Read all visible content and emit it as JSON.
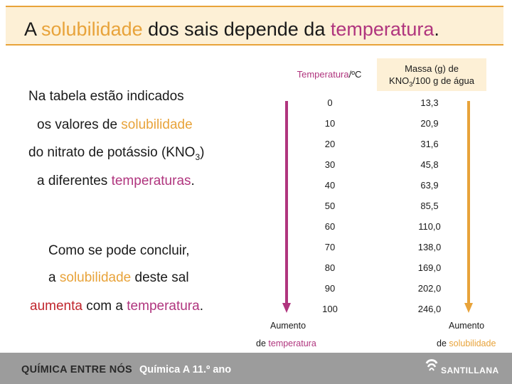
{
  "title": {
    "part1": "A ",
    "solubilidade": "solubilidade",
    "part2": " dos sais depende da ",
    "temperatura": "temperatura",
    "dot": "."
  },
  "intro": {
    "line1": "Na tabela estão indicados",
    "line2_pre": "os valores de ",
    "line2_hl": "solubilidade",
    "line3_pre": "do nitrato de potássio (KNO",
    "line3_sub": "3",
    "line3_post": ")",
    "line4_pre": "a diferentes ",
    "line4_hl": "temperaturas",
    "line4_post": "."
  },
  "conclusion": {
    "line1": "Como se pode concluir,",
    "line2_pre": "a ",
    "line2_hl": "solubilidade",
    "line2_post": " deste sal",
    "line3_hl1": "aumenta",
    "line3_mid": " com a ",
    "line3_hl2": "temperatura",
    "line3_post": "."
  },
  "table": {
    "header_temp_a": "Temperatura",
    "header_temp_b": "/ºC",
    "header_mass_1": "Massa (g) de",
    "header_mass_2a": "KNO",
    "header_mass_2sub": "3",
    "header_mass_2b": "/100 g de água",
    "rows": [
      [
        "0",
        "13,3"
      ],
      [
        "10",
        "20,9"
      ],
      [
        "20",
        "31,6"
      ],
      [
        "30",
        "45,8"
      ],
      [
        "40",
        "63,9"
      ],
      [
        "50",
        "85,5"
      ],
      [
        "60",
        "110,0"
      ],
      [
        "70",
        "138,0"
      ],
      [
        "80",
        "169,0"
      ],
      [
        "90",
        "202,0"
      ],
      [
        "100",
        "246,0"
      ]
    ]
  },
  "arrows": {
    "left_line1": "Aumento",
    "left_line2a": "de ",
    "left_line2b": "temperatura",
    "right_line1": "Aumento",
    "right_line2a": "de ",
    "right_line2b": "solubilidade"
  },
  "footer": {
    "brand": "QUÍMICA ENTRE NÓS",
    "course": "Química A  11.º ano",
    "publisher": "SANTILLANA"
  },
  "colors": {
    "orange": "#e8a33a",
    "magenta": "#b0357e",
    "title_bg": "#fdf0d6",
    "footer_bg": "#9c9c9c"
  }
}
